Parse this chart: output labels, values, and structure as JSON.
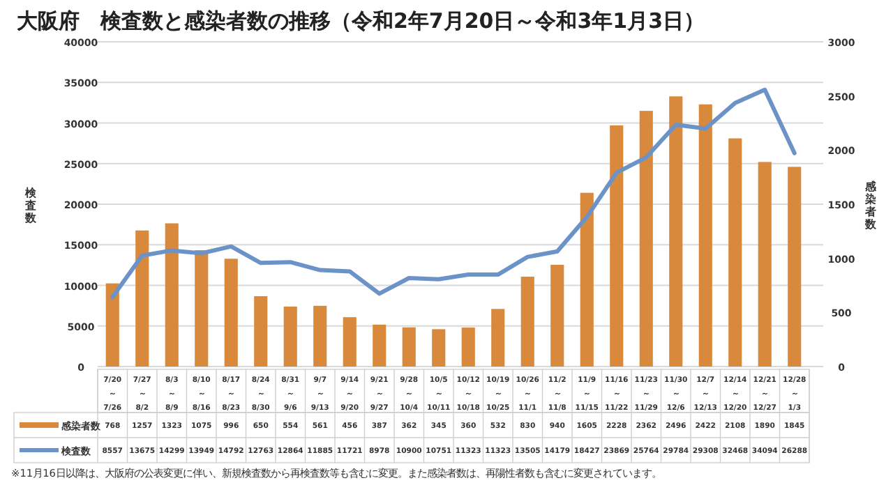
{
  "chart_data": {
    "type": "bar",
    "title": "大阪府　検査数と感染者数の推移（令和2年7月20日～令和3年1月3日）",
    "ylabel": "検査数",
    "y2label": "感染者数",
    "categories": [
      "7/20～7/26",
      "7/27～8/2",
      "8/3～8/9",
      "8/10～8/16",
      "8/17～8/23",
      "8/24～8/30",
      "8/31～9/6",
      "9/7～9/13",
      "9/14～9/20",
      "9/21～9/27",
      "9/28～10/4",
      "10/5～10/11",
      "10/12～10/18",
      "10/19～10/25",
      "10/26～11/1",
      "11/2～11/8",
      "11/9～11/15",
      "11/16～11/22",
      "11/23～11/29",
      "11/30～12/6",
      "12/7～12/13",
      "12/14～12/20",
      "12/21～12/27",
      "12/28～1/3"
    ],
    "series": [
      {
        "name": "感染者数",
        "axis": "y2",
        "color": "#d9893b",
        "values": [
          768,
          1257,
          1323,
          1075,
          996,
          650,
          554,
          561,
          456,
          387,
          362,
          345,
          360,
          532,
          830,
          940,
          1605,
          2228,
          2362,
          2496,
          2422,
          2108,
          1890,
          1845
        ]
      },
      {
        "name": "検査数",
        "type": "line",
        "color": "#6b93c8",
        "values": [
          8557,
          13675,
          14299,
          13949,
          14792,
          12763,
          12864,
          11885,
          11721,
          8978,
          10900,
          10751,
          11323,
          11323,
          13505,
          14179,
          18427,
          23869,
          25764,
          29784,
          29308,
          32468,
          34094,
          26288
        ]
      }
    ],
    "ylim": [
      0,
      40000
    ],
    "yticks": [
      0,
      5000,
      10000,
      15000,
      20000,
      25000,
      30000,
      35000,
      40000
    ],
    "y2lim": [
      0,
      3000
    ],
    "y2ticks": [
      0,
      500,
      1000,
      1500,
      2000,
      2500,
      3000
    ],
    "grid": "y",
    "legend": "bottom",
    "data_labels": true,
    "line_style": "solid",
    "marker": "none",
    "annotations": [
      "※11月16日以降は、大阪府の公表変更に伴い、新規検査数から再検査数等も含むに変更。また感染者数は、再陽性者数も含むに変更されています。"
    ]
  }
}
